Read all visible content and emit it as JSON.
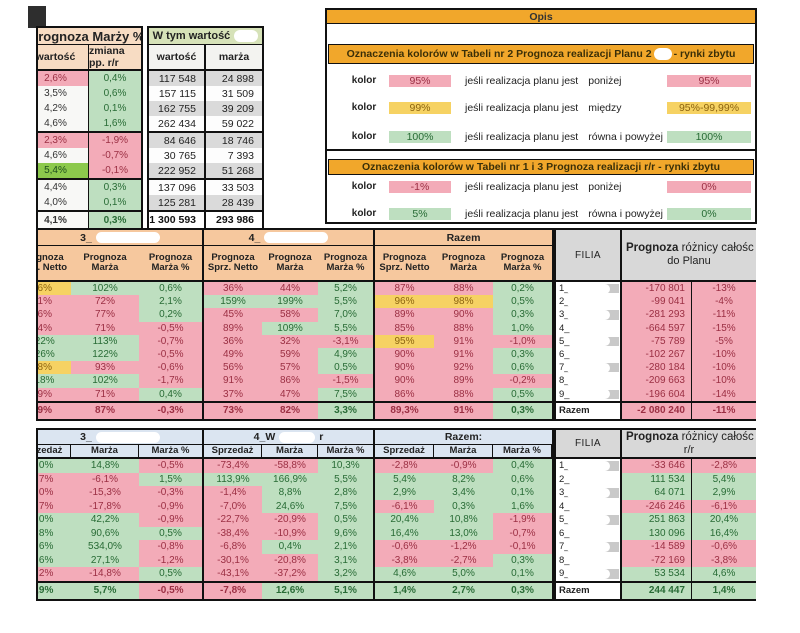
{
  "colors": {
    "pink": "#f3abb8",
    "green": "#bedfc0",
    "yellow": "#f6d263",
    "bright_green": "#8cc94c",
    "pink_text": "#9b2f43",
    "green_text": "#286b35",
    "yellow_text": "#8c6410",
    "header_tan": "#f7dcc3",
    "header_peach": "#f6c89e",
    "header_blue": "#dbe5f1",
    "header_gray": "#d8d8d8",
    "orange_bar": "#f1a72b",
    "wtym_green": "#d6e2b8",
    "band_gray": "#dadada"
  },
  "top_table": {
    "title": "Prognoza Marży %",
    "h_value": "wartość",
    "h_change": "zmiana pp. r/r",
    "right_title": "W tym wartość",
    "h_value2": "wartość",
    "h_marza": "marża",
    "rows": [
      {
        "c1": [
          "2,6%",
          "p"
        ],
        "c2": [
          "0,4%",
          "g"
        ],
        "c3": "117 548",
        "c4": "24 898"
      },
      {
        "c1": [
          "3,5%",
          "w"
        ],
        "c2": [
          "0,6%",
          "g"
        ],
        "c3": "157 115",
        "c4": "31 509"
      },
      {
        "c1": [
          "4,2%",
          "w"
        ],
        "c2": [
          "0,1%",
          "g"
        ],
        "c3": "162 755",
        "c4": "39 209"
      },
      {
        "c1": [
          "4,6%",
          "w"
        ],
        "c2": [
          "1,6%",
          "g"
        ],
        "c3": "262 434",
        "c4": "59 022"
      },
      {
        "c1": [
          "2,3%",
          "p"
        ],
        "c2": [
          "-1,9%",
          "p"
        ],
        "c3": "84 646",
        "c4": "18 746"
      },
      {
        "c1": [
          "4,6%",
          "w"
        ],
        "c2": [
          "-0,7%",
          "p"
        ],
        "c3": "30 765",
        "c4": "7 393"
      },
      {
        "c1": [
          "5,4%",
          "G"
        ],
        "c2": [
          "-0,1%",
          "p"
        ],
        "c3": "222 952",
        "c4": "51 268"
      },
      {
        "c1": [
          "4,4%",
          "w"
        ],
        "c2": [
          "0,3%",
          "g"
        ],
        "c3": "137 096",
        "c4": "33 503"
      },
      {
        "c1": [
          "4,0%",
          "w"
        ],
        "c2": [
          "0,1%",
          "g"
        ],
        "c3": "125 281",
        "c4": "28 439"
      },
      {
        "c1": [
          "4,1%",
          "w"
        ],
        "c2": [
          "0,3%",
          "g"
        ],
        "c3": "1 300 593",
        "c4": "293 986"
      }
    ]
  },
  "legend": {
    "opis": "Opis",
    "title1_prefix": "Oznaczenia kolorów w Tabeli nr 2 Prognoza realizacji Planu 2",
    "title1_suffix": "- rynki zbytu",
    "title2": "Oznaczenia kolorów w Tabeli nr 1 i 3 Prognoza realizacji  r/r - rynki zbytu",
    "rows_section1": [
      {
        "label": "kolor",
        "swatch": "95%",
        "swatch_color": "p",
        "text": "jeśli realizacja planu jest",
        "cond": "poniżej",
        "right": "95%",
        "right_color": "p"
      },
      {
        "label": "kolor",
        "swatch": "99%",
        "swatch_color": "y",
        "text": "jeśli realizacja planu jest",
        "cond": "między",
        "right": "95%-99,99%",
        "right_color": "y"
      },
      {
        "label": "kolor",
        "swatch": "100%",
        "swatch_color": "g",
        "text": "jeśli realizacja planu jest",
        "cond": "równa i powyżej",
        "right": "100%",
        "right_color": "g"
      }
    ],
    "rows_section2": [
      {
        "label": "kolor",
        "swatch": "-1%",
        "swatch_color": "p",
        "text": "jeśli realizacja planu jest",
        "cond": "poniżej",
        "right": "0%",
        "right_color": "p"
      },
      {
        "label": "kolor",
        "swatch": "5%",
        "swatch_color": "g",
        "text": "jeśli realizacja planu jest",
        "cond": "równa i powyżej",
        "right": "0%",
        "right_color": "g"
      }
    ]
  },
  "mid_table": {
    "groups": [
      {
        "label": "3_",
        "redacted": true
      },
      {
        "label": "4_",
        "redacted": true
      },
      {
        "label": "Razem",
        "redacted": false
      }
    ],
    "subheaders": [
      [
        "Prognoza",
        "Sprz. Netto"
      ],
      [
        "Prognoza",
        "Marża"
      ],
      [
        "Prognoza",
        "Marża %"
      ]
    ],
    "filia_header": "FILIA",
    "diff_title_bold": "Prognoza",
    "diff_title_rest": "różnicy całośc",
    "diff_title_line2": "do Planu",
    "rows": [
      {
        "cells": [
          [
            "96%",
            "y"
          ],
          [
            "102%",
            "g"
          ],
          [
            "0,6%",
            "g"
          ],
          [
            "36%",
            "p"
          ],
          [
            "44%",
            "p"
          ],
          [
            "5,2%",
            "g"
          ],
          [
            "87%",
            "p"
          ],
          [
            "88%",
            "p"
          ],
          [
            "0,2%",
            "g"
          ]
        ],
        "filia": "1_",
        "diff": [
          "-170 801",
          "p"
        ],
        "diff_pct": [
          "-13%",
          "p"
        ]
      },
      {
        "cells": [
          [
            "61%",
            "p"
          ],
          [
            "72%",
            "p"
          ],
          [
            "2,1%",
            "g"
          ],
          [
            "159%",
            "g"
          ],
          [
            "199%",
            "g"
          ],
          [
            "5,5%",
            "g"
          ],
          [
            "96%",
            "y"
          ],
          [
            "98%",
            "y"
          ],
          [
            "0,5%",
            "g"
          ]
        ],
        "filia": "2_",
        "diff": [
          "-99 041",
          "p"
        ],
        "diff_pct": [
          "-4%",
          "p"
        ]
      },
      {
        "cells": [
          [
            "76%",
            "p"
          ],
          [
            "77%",
            "p"
          ],
          [
            "0,2%",
            "g"
          ],
          [
            "45%",
            "p"
          ],
          [
            "58%",
            "p"
          ],
          [
            "7,0%",
            "g"
          ],
          [
            "89%",
            "p"
          ],
          [
            "90%",
            "p"
          ],
          [
            "0,3%",
            "g"
          ]
        ],
        "filia": "3_",
        "diff": [
          "-281 293",
          "p"
        ],
        "diff_pct": [
          "-11%",
          "p"
        ]
      },
      {
        "cells": [
          [
            "74%",
            "p"
          ],
          [
            "71%",
            "p"
          ],
          [
            "-0,5%",
            "p"
          ],
          [
            "89%",
            "p"
          ],
          [
            "109%",
            "g"
          ],
          [
            "5,5%",
            "g"
          ],
          [
            "85%",
            "p"
          ],
          [
            "88%",
            "p"
          ],
          [
            "1,0%",
            "g"
          ]
        ],
        "filia": "4_",
        "diff": [
          "-664 597",
          "p"
        ],
        "diff_pct": [
          "-15%",
          "p"
        ]
      },
      {
        "cells": [
          [
            "122%",
            "g"
          ],
          [
            "113%",
            "g"
          ],
          [
            "-0,7%",
            "p"
          ],
          [
            "36%",
            "p"
          ],
          [
            "32%",
            "p"
          ],
          [
            "-3,1%",
            "p"
          ],
          [
            "95%",
            "y"
          ],
          [
            "91%",
            "p"
          ],
          [
            "-1,0%",
            "p"
          ]
        ],
        "filia": "5_",
        "diff": [
          "-75 789",
          "p"
        ],
        "diff_pct": [
          "-5%",
          "p"
        ]
      },
      {
        "cells": [
          [
            "126%",
            "g"
          ],
          [
            "122%",
            "g"
          ],
          [
            "-0,5%",
            "p"
          ],
          [
            "49%",
            "p"
          ],
          [
            "59%",
            "p"
          ],
          [
            "4,9%",
            "g"
          ],
          [
            "90%",
            "p"
          ],
          [
            "91%",
            "p"
          ],
          [
            "0,3%",
            "g"
          ]
        ],
        "filia": "6_",
        "diff": [
          "-102 267",
          "p"
        ],
        "diff_pct": [
          "-10%",
          "p"
        ]
      },
      {
        "cells": [
          [
            "98%",
            "y"
          ],
          [
            "93%",
            "p"
          ],
          [
            "-0,6%",
            "p"
          ],
          [
            "56%",
            "p"
          ],
          [
            "57%",
            "p"
          ],
          [
            "0,5%",
            "g"
          ],
          [
            "90%",
            "p"
          ],
          [
            "92%",
            "p"
          ],
          [
            "0,6%",
            "g"
          ]
        ],
        "filia": "7_",
        "diff": [
          "-280 184",
          "p"
        ],
        "diff_pct": [
          "-10%",
          "p"
        ]
      },
      {
        "cells": [
          [
            "118%",
            "g"
          ],
          [
            "102%",
            "g"
          ],
          [
            "-1,7%",
            "p"
          ],
          [
            "91%",
            "p"
          ],
          [
            "86%",
            "p"
          ],
          [
            "-1,5%",
            "p"
          ],
          [
            "90%",
            "p"
          ],
          [
            "89%",
            "p"
          ],
          [
            "-0,2%",
            "p"
          ]
        ],
        "filia": "8_",
        "diff": [
          "-209 663",
          "p"
        ],
        "diff_pct": [
          "-10%",
          "p"
        ]
      },
      {
        "cells": [
          [
            "69%",
            "p"
          ],
          [
            "71%",
            "p"
          ],
          [
            "0,4%",
            "g"
          ],
          [
            "37%",
            "p"
          ],
          [
            "47%",
            "p"
          ],
          [
            "7,5%",
            "g"
          ],
          [
            "86%",
            "p"
          ],
          [
            "88%",
            "p"
          ],
          [
            "0,5%",
            "g"
          ]
        ],
        "filia": "9_",
        "diff": [
          "-196 604",
          "p"
        ],
        "diff_pct": [
          "-14%",
          "p"
        ]
      }
    ],
    "razem": {
      "label": "Razem",
      "cells": [
        [
          "89%",
          "p"
        ],
        [
          "87%",
          "p"
        ],
        [
          "-0,3%",
          "p"
        ],
        [
          "73%",
          "p"
        ],
        [
          "82%",
          "p"
        ],
        [
          "3,3%",
          "g"
        ],
        [
          "89,3%",
          "p"
        ],
        [
          "91%",
          "p"
        ],
        [
          "0,3%",
          "g"
        ]
      ],
      "diff": [
        "-2 080 240",
        "p"
      ],
      "diff_pct": [
        "-11%",
        "p"
      ]
    }
  },
  "bottom_table": {
    "groups": [
      {
        "label": "3_",
        "redacted": true
      },
      {
        "label": "4_W",
        "redacted": true,
        "suffix": "r"
      },
      {
        "label": "Razem:",
        "redacted": false
      }
    ],
    "subheaders": [
      [
        "Sprzedaż"
      ],
      [
        "Marża"
      ],
      [
        "Marża %"
      ]
    ],
    "filia_header": "FILIA",
    "diff_title_bold": "Prognoza",
    "diff_title_rest": "różnicy całośc",
    "diff_title_line2": "r/r",
    "rows": [
      {
        "cells": [
          [
            "0,0%",
            "g"
          ],
          [
            "14,8%",
            "g"
          ],
          [
            "-0,5%",
            "p"
          ],
          [
            "-73,4%",
            "p"
          ],
          [
            "-58,8%",
            "p"
          ],
          [
            "10,3%",
            "g"
          ],
          [
            "-2,8%",
            "p"
          ],
          [
            "-0,9%",
            "p"
          ],
          [
            "0,4%",
            "g"
          ]
        ],
        "filia": "1_",
        "diff": [
          "-33 646",
          "p"
        ],
        "diff_pct": [
          "-2,8%",
          "p"
        ]
      },
      {
        "cells": [
          [
            "6,7%",
            "p"
          ],
          [
            "-6,1%",
            "p"
          ],
          [
            "1,5%",
            "g"
          ],
          [
            "113,9%",
            "g"
          ],
          [
            "166,9%",
            "g"
          ],
          [
            "5,5%",
            "g"
          ],
          [
            "5,4%",
            "g"
          ],
          [
            "8,2%",
            "g"
          ],
          [
            "0,6%",
            "g"
          ]
        ],
        "filia": "2_",
        "diff": [
          "111 534",
          "g"
        ],
        "diff_pct": [
          "5,4%",
          "g"
        ]
      },
      {
        "cells": [
          [
            "3,0%",
            "p"
          ],
          [
            "-15,3%",
            "p"
          ],
          [
            "-0,3%",
            "p"
          ],
          [
            "-1,4%",
            "p"
          ],
          [
            "8,8%",
            "g"
          ],
          [
            "2,8%",
            "g"
          ],
          [
            "2,9%",
            "g"
          ],
          [
            "3,4%",
            "g"
          ],
          [
            "0,1%",
            "g"
          ]
        ],
        "filia": "3_",
        "diff": [
          "64 071",
          "g"
        ],
        "diff_pct": [
          "2,9%",
          "g"
        ]
      },
      {
        "cells": [
          [
            "0,7%",
            "p"
          ],
          [
            "-17,8%",
            "p"
          ],
          [
            "-0,9%",
            "p"
          ],
          [
            "-7,0%",
            "p"
          ],
          [
            "24,6%",
            "g"
          ],
          [
            "7,5%",
            "g"
          ],
          [
            "-6,1%",
            "p"
          ],
          [
            "0,3%",
            "g"
          ],
          [
            "1,6%",
            "g"
          ]
        ],
        "filia": "4_",
        "diff": [
          "-246 246",
          "p"
        ],
        "diff_pct": [
          "-6,1%",
          "p"
        ]
      },
      {
        "cells": [
          [
            "5,0%",
            "g"
          ],
          [
            "42,2%",
            "g"
          ],
          [
            "-0,9%",
            "p"
          ],
          [
            "-22,7%",
            "p"
          ],
          [
            "-20,9%",
            "p"
          ],
          [
            "0,5%",
            "g"
          ],
          [
            "20,4%",
            "g"
          ],
          [
            "10,8%",
            "g"
          ],
          [
            "-1,9%",
            "p"
          ]
        ],
        "filia": "5_",
        "diff": [
          "251 863",
          "g"
        ],
        "diff_pct": [
          "20,4%",
          "g"
        ]
      },
      {
        "cells": [
          [
            "1,8%",
            "g"
          ],
          [
            "90,6%",
            "g"
          ],
          [
            "0,5%",
            "g"
          ],
          [
            "-38,4%",
            "p"
          ],
          [
            "-10,9%",
            "p"
          ],
          [
            "9,6%",
            "g"
          ],
          [
            "16,4%",
            "g"
          ],
          [
            "13,0%",
            "g"
          ],
          [
            "-0,7%",
            "p"
          ]
        ],
        "filia": "6_",
        "diff": [
          "130 096",
          "g"
        ],
        "diff_pct": [
          "16,4%",
          "g"
        ]
      },
      {
        "cells": [
          [
            "1,6%",
            "g"
          ],
          [
            "534,0%",
            "g"
          ],
          [
            "-0,8%",
            "p"
          ],
          [
            "-6,8%",
            "p"
          ],
          [
            "0,4%",
            "g"
          ],
          [
            "2,1%",
            "g"
          ],
          [
            "-0,6%",
            "p"
          ],
          [
            "-1,2%",
            "p"
          ],
          [
            "-0,1%",
            "p"
          ]
        ],
        "filia": "7_",
        "diff": [
          "-14 589",
          "p"
        ],
        "diff_pct": [
          "-0,6%",
          "p"
        ]
      },
      {
        "cells": [
          [
            "1,6%",
            "g"
          ],
          [
            "27,1%",
            "g"
          ],
          [
            "-1,2%",
            "p"
          ],
          [
            "-30,1%",
            "p"
          ],
          [
            "-20,8%",
            "p"
          ],
          [
            "3,1%",
            "g"
          ],
          [
            "-3,8%",
            "p"
          ],
          [
            "-2,7%",
            "p"
          ],
          [
            "0,3%",
            "g"
          ]
        ],
        "filia": "8_",
        "diff": [
          "-72 169",
          "p"
        ],
        "diff_pct": [
          "-3,8%",
          "p"
        ]
      },
      {
        "cells": [
          [
            "8,2%",
            "p"
          ],
          [
            "-14,8%",
            "p"
          ],
          [
            "0,5%",
            "g"
          ],
          [
            "-43,1%",
            "p"
          ],
          [
            "-37,2%",
            "p"
          ],
          [
            "3,2%",
            "g"
          ],
          [
            "4,6%",
            "g"
          ],
          [
            "5,0%",
            "g"
          ],
          [
            "0,1%",
            "g"
          ]
        ],
        "filia": "9_",
        "diff": [
          "53 534",
          "g"
        ],
        "diff_pct": [
          "4,6%",
          "g"
        ]
      }
    ],
    "razem": {
      "label": "Razem",
      "cells": [
        [
          "0,9%",
          "g"
        ],
        [
          "5,7%",
          "g"
        ],
        [
          "-0,5%",
          "p"
        ],
        [
          "-7,8%",
          "p"
        ],
        [
          "12,6%",
          "g"
        ],
        [
          "5,1%",
          "g"
        ],
        [
          "1,4%",
          "g"
        ],
        [
          "2,7%",
          "g"
        ],
        [
          "0,3%",
          "g"
        ]
      ],
      "diff": [
        "244 447",
        "g"
      ],
      "diff_pct": [
        "1,4%",
        "g"
      ]
    }
  }
}
